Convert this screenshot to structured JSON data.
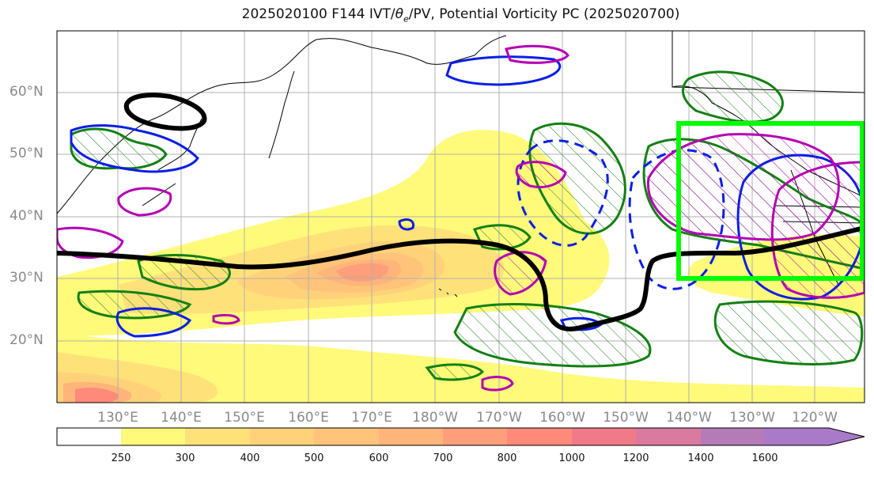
{
  "title": {
    "prefix": "2025020100 F144 IVT/",
    "theta": "θ",
    "theta_sub": "e",
    "suffix": "/PV, Potential Vorticity PC (2025020700)"
  },
  "lat_labels": [
    "60°N",
    "50°N",
    "40°N",
    "30°N",
    "20°N"
  ],
  "lon_labels": [
    "130°E",
    "140°E",
    "150°E",
    "160°E",
    "170°E",
    "180°W",
    "170°W",
    "160°W",
    "150°W",
    "140°W",
    "130°W",
    "120°W"
  ],
  "colorbar": {
    "levels": [
      "250",
      "300",
      "400",
      "500",
      "600",
      "700",
      "800",
      "1000",
      "1200",
      "1400",
      "1600"
    ],
    "colors": [
      "#ffffff",
      "#fffa7a",
      "#ffe17a",
      "#ffd27a",
      "#ffc47a",
      "#ffb47a",
      "#ff9e7a",
      "#ff8a7a",
      "#f07a88",
      "#d97a9e",
      "#b57ab8",
      "#a87ac8"
    ]
  },
  "legend_colors": {
    "jet_contour": "#000000",
    "positive_pv_hatched": "#138013",
    "blue_contour": "#0a1ee6",
    "magenta_contour": "#b400b4",
    "highlight_box": "#00ff00"
  }
}
